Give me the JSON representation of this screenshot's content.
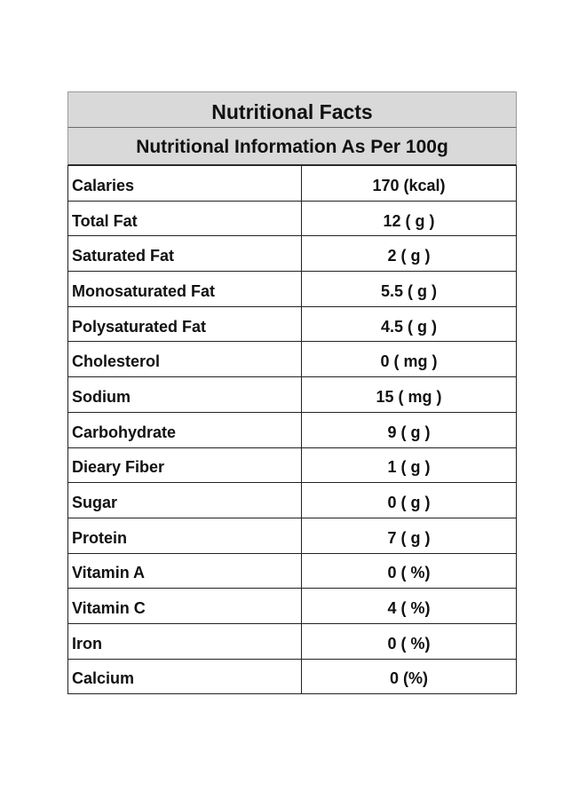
{
  "title": "Nutritional Facts",
  "subtitle": "Nutritional Information As Per 100g",
  "rows": [
    {
      "name": "Calaries",
      "value": "170 (kcal)"
    },
    {
      "name": "Total Fat",
      "value": "12 ( g )"
    },
    {
      "name": "Saturated Fat",
      "value": "2 ( g )"
    },
    {
      "name": "Monosaturated Fat",
      "value": "5.5 ( g )"
    },
    {
      "name": "Polysaturated Fat",
      "value": "4.5 ( g )"
    },
    {
      "name": "Cholesterol",
      "value": "0 ( mg )"
    },
    {
      "name": "Sodium",
      "value": "15 ( mg )"
    },
    {
      "name": "Carbohydrate",
      "value": "9 ( g )"
    },
    {
      "name": "Dieary Fiber",
      "value": "1 ( g )"
    },
    {
      "name": "Sugar",
      "value": "0 ( g )"
    },
    {
      "name": "Protein",
      "value": "7 ( g )"
    },
    {
      "name": "Vitamin A",
      "value": "0 ( %)"
    },
    {
      "name": "Vitamin C",
      "value": "4 ( %)"
    },
    {
      "name": "Iron",
      "value": "0 ( %)"
    },
    {
      "name": "Calcium",
      "value": "0 (%)"
    }
  ]
}
